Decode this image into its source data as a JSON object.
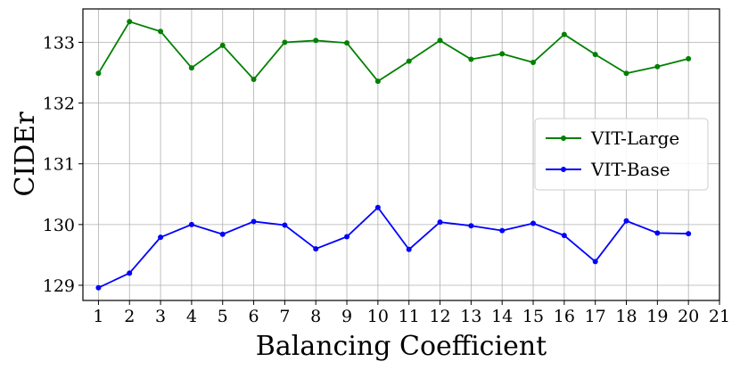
{
  "chart_data": {
    "type": "line",
    "xlabel": "Balancing Coefficient",
    "ylabel": "CIDEr",
    "x": [
      1,
      2,
      3,
      4,
      5,
      6,
      7,
      8,
      9,
      10,
      11,
      12,
      13,
      14,
      15,
      16,
      17,
      18,
      19,
      20
    ],
    "xticks": [
      1,
      2,
      3,
      4,
      5,
      6,
      7,
      8,
      9,
      10,
      11,
      12,
      13,
      14,
      15,
      16,
      17,
      18,
      19,
      20,
      21
    ],
    "yticks": [
      129,
      130,
      131,
      132,
      133
    ],
    "xlim": [
      0.5,
      21.0
    ],
    "ylim": [
      128.75,
      133.55
    ],
    "grid": true,
    "legend_position": "center-right",
    "series": [
      {
        "name": "VIT-Large",
        "color": "#008000",
        "values": [
          132.49,
          133.34,
          133.18,
          132.58,
          132.95,
          132.39,
          133.0,
          133.03,
          132.99,
          132.36,
          132.69,
          133.03,
          132.72,
          132.81,
          132.67,
          133.13,
          132.8,
          132.49,
          132.6,
          132.73
        ]
      },
      {
        "name": "VIT-Base",
        "color": "#0000ff",
        "values": [
          128.96,
          129.2,
          129.79,
          130.0,
          129.84,
          130.05,
          129.99,
          129.6,
          129.8,
          130.28,
          129.59,
          130.04,
          129.98,
          129.9,
          130.02,
          129.82,
          129.39,
          130.06,
          129.86,
          129.85
        ]
      }
    ]
  }
}
